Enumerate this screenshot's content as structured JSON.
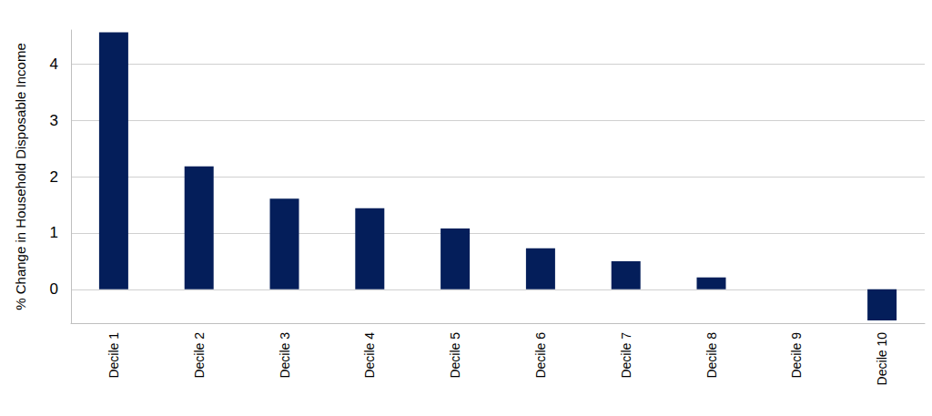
{
  "chart_data": {
    "type": "bar",
    "y_label": "% Change in Household Disposable Income",
    "categories": [
      "Decile 1",
      "Decile 2",
      "Decile 3",
      "Decile 4",
      "Decile 5",
      "Decile 6",
      "Decile 7",
      "Decile 8",
      "Decile 9",
      "Decile 10"
    ],
    "values": [
      4.56,
      2.18,
      1.61,
      1.44,
      1.08,
      0.73,
      0.5,
      0.21,
      0,
      -0.55
    ],
    "color": "#041e5a",
    "ylim": [
      -0.6,
      4.6
    ],
    "yticks": [
      0,
      1,
      2,
      3,
      4
    ],
    "grid": true
  }
}
